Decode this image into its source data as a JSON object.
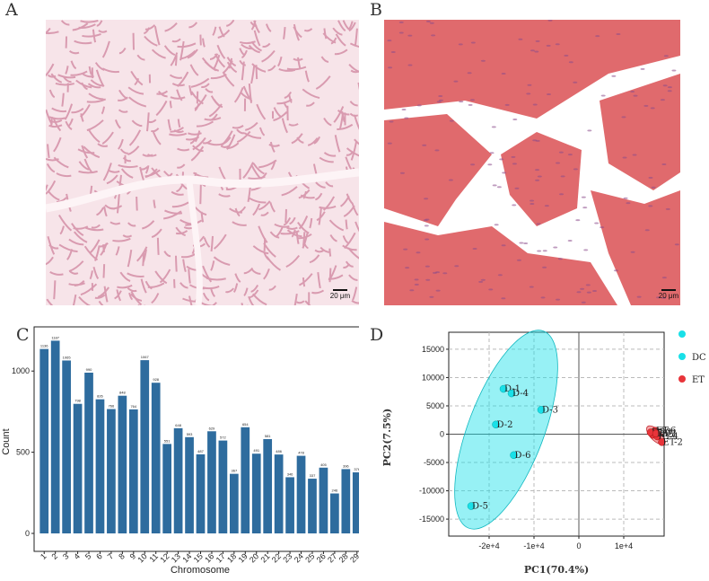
{
  "panels": {
    "a": {
      "letter": "A",
      "scale": "20 μm"
    },
    "b": {
      "letter": "B",
      "scale": "20 μm"
    },
    "c": {
      "letter": "C"
    },
    "d": {
      "letter": "D"
    }
  },
  "colors": {
    "bar": "#2e6c9e",
    "dc": "#19e0e8",
    "et": "#e8343a",
    "histA_bg": "#f7e4e9",
    "histA_fiber": "#d99bb0",
    "histB_bg": "#ffffff",
    "histB_tissue": "#e06a6d"
  },
  "chart_data": [
    {
      "type": "bar",
      "title": "",
      "xlabel": "Chromosome",
      "ylabel": "Count",
      "categories": [
        "1",
        "2",
        "3",
        "4",
        "5",
        "6",
        "7",
        "8",
        "9",
        "10",
        "11",
        "12",
        "13",
        "14",
        "15",
        "16",
        "17",
        "18",
        "19",
        "20",
        "21",
        "22",
        "23",
        "24",
        "25",
        "26",
        "27",
        "28",
        "29"
      ],
      "values": [
        1136,
        1187,
        1065,
        798,
        990,
        826,
        766,
        848,
        764,
        1067,
        928,
        551,
        648,
        593,
        487,
        629,
        572,
        367,
        654,
        491,
        581,
        486,
        346,
        478,
        337,
        405,
        246,
        396,
        376
      ],
      "ylim": [
        0,
        1250
      ],
      "yticks": [
        0,
        500,
        1000
      ],
      "grid": false
    },
    {
      "type": "scatter",
      "title": "",
      "xlabel": "PC1(70.4%)",
      "ylabel": "PC2(7.5%)",
      "xlim": [
        -29000,
        19000
      ],
      "ylim": [
        -18000,
        18000
      ],
      "xticks": [
        {
          "v": -20000,
          "label": "-2e+4"
        },
        {
          "v": -10000,
          "label": "-1e+4"
        },
        {
          "v": 0,
          "label": "0"
        },
        {
          "v": 10000,
          "label": "1e+4"
        }
      ],
      "yticks": [
        {
          "v": 15000,
          "label": "15000"
        },
        {
          "v": 10000,
          "label": "10000"
        },
        {
          "v": 5000,
          "label": "5000"
        },
        {
          "v": 0,
          "label": "0"
        },
        {
          "v": -5000,
          "label": "-5000"
        },
        {
          "v": -10000,
          "label": "-10000"
        },
        {
          "v": -15000,
          "label": "-15000"
        }
      ],
      "grid": true,
      "legend": {
        "placement": "right",
        "entries": [
          {
            "name": "",
            "color": "#19e0e8"
          },
          {
            "name": "DC",
            "color": "#19e0e8"
          },
          {
            "name": "ET",
            "color": "#e8343a"
          }
        ]
      },
      "series": [
        {
          "name": "DC",
          "points": [
            {
              "label": "D-1",
              "x": -16800,
              "y": 8000
            },
            {
              "label": "D-4",
              "x": -15000,
              "y": 7200
            },
            {
              "label": "D-3",
              "x": -8400,
              "y": 4300
            },
            {
              "label": "D-2",
              "x": -18500,
              "y": 1700
            },
            {
              "label": "D-6",
              "x": -14500,
              "y": -3700
            },
            {
              "label": "D-5",
              "x": -24000,
              "y": -12700
            }
          ]
        },
        {
          "name": "ET",
          "points": [
            {
              "label": "ET-6",
              "x": 17000,
              "y": 600
            },
            {
              "label": "ET-5",
              "x": 16500,
              "y": -100
            },
            {
              "label": "ET-4",
              "x": 17500,
              "y": -400
            },
            {
              "label": "ET-3",
              "x": 16000,
              "y": 300
            },
            {
              "label": "ET-1",
              "x": 17200,
              "y": 100
            },
            {
              "label": "ET-2",
              "x": 18500,
              "y": -1400
            }
          ]
        }
      ]
    }
  ]
}
